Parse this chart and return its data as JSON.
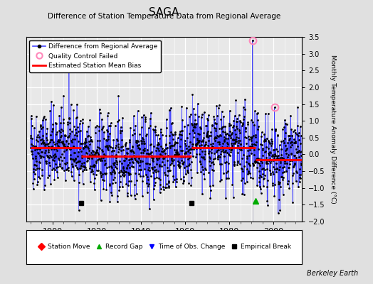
{
  "title": "SAGA",
  "subtitle": "Difference of Station Temperature Data from Regional Average",
  "ylabel": "Monthly Temperature Anomaly Difference (°C)",
  "ylim": [
    -2.0,
    3.5
  ],
  "yticks": [
    -2,
    -1.5,
    -1,
    -0.5,
    0,
    0.5,
    1,
    1.5,
    2,
    2.5,
    3,
    3.5
  ],
  "xlim": [
    1888,
    2013
  ],
  "xticks": [
    1900,
    1920,
    1940,
    1960,
    1980,
    2000
  ],
  "data_start_year": 1890,
  "data_end_year": 2013,
  "background_color": "#e0e0e0",
  "plot_bg_color": "#e8e8e8",
  "line_color": "#4444ff",
  "dot_color": "#000000",
  "bias_color": "#ff0000",
  "grid_color": "#ffffff",
  "bias_segments": [
    {
      "start": 1890,
      "end": 1913,
      "value": 0.2
    },
    {
      "start": 1913,
      "end": 1963,
      "value": -0.05
    },
    {
      "start": 1963,
      "end": 1992,
      "value": 0.2
    },
    {
      "start": 1992,
      "end": 2013,
      "value": -0.15
    }
  ],
  "empirical_breaks": [
    1913,
    1963
  ],
  "record_gap": [
    1992
  ],
  "qc_failed": [
    {
      "year": 1990.5,
      "value": 3.4
    },
    {
      "year": 2000.5,
      "value": 1.4
    }
  ],
  "spike_year": 1990.5,
  "watermark": "Berkeley Earth",
  "seed": 42,
  "noise_amplitude": 0.58,
  "noise_autocorr": 0.25
}
